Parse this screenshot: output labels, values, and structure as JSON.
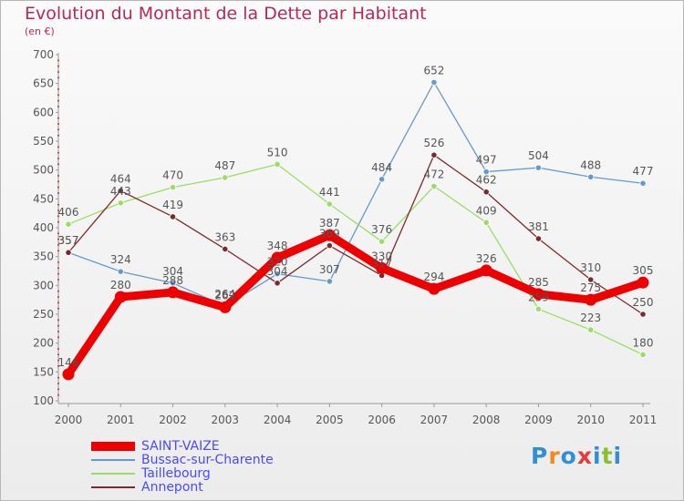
{
  "header": {
    "title": "Evolution du Montant de la Dette par Habitant",
    "unit": "(en €)"
  },
  "logo": {
    "text": "Proxiti",
    "colors": [
      "#2f8fd8",
      "#f28a1e",
      "#2f8fd8",
      "#e23c3c",
      "#2f8fd8",
      "#8bbf2e",
      "#2f8fd8"
    ]
  },
  "chart_data": {
    "type": "line",
    "title": "Evolution du Montant de la Dette par Habitant",
    "ylabel": "(en €)",
    "x": [
      "2000",
      "2001",
      "2002",
      "2003",
      "2004",
      "2005",
      "2006",
      "2007",
      "2008",
      "2009",
      "2010",
      "2011"
    ],
    "ylim": [
      100,
      700
    ],
    "yticks": [
      100,
      150,
      200,
      250,
      300,
      350,
      400,
      450,
      500,
      550,
      600,
      650,
      700
    ],
    "grid": false,
    "legend": "bottom-left",
    "series": [
      {
        "name": "SAINT-VAIZE",
        "color": "#ee0000",
        "values": [
          146,
          280,
          288,
          262,
          348,
          387,
          330,
          294,
          326,
          285,
          275,
          305
        ]
      },
      {
        "name": "Bussac-sur-Charente",
        "color": "#6699cc",
        "values": [
          357,
          324,
          304,
          264,
          320,
          307,
          484,
          652,
          497,
          504,
          488,
          477
        ]
      },
      {
        "name": "Taillebourg",
        "color": "#99dd66",
        "values": [
          406,
          443,
          470,
          487,
          510,
          441,
          376,
          472,
          409,
          259,
          223,
          180
        ]
      },
      {
        "name": "Annepont",
        "color": "#7a2a2a",
        "values": [
          357,
          464,
          419,
          363,
          304,
          369,
          317,
          526,
          462,
          381,
          310,
          250
        ]
      }
    ]
  }
}
